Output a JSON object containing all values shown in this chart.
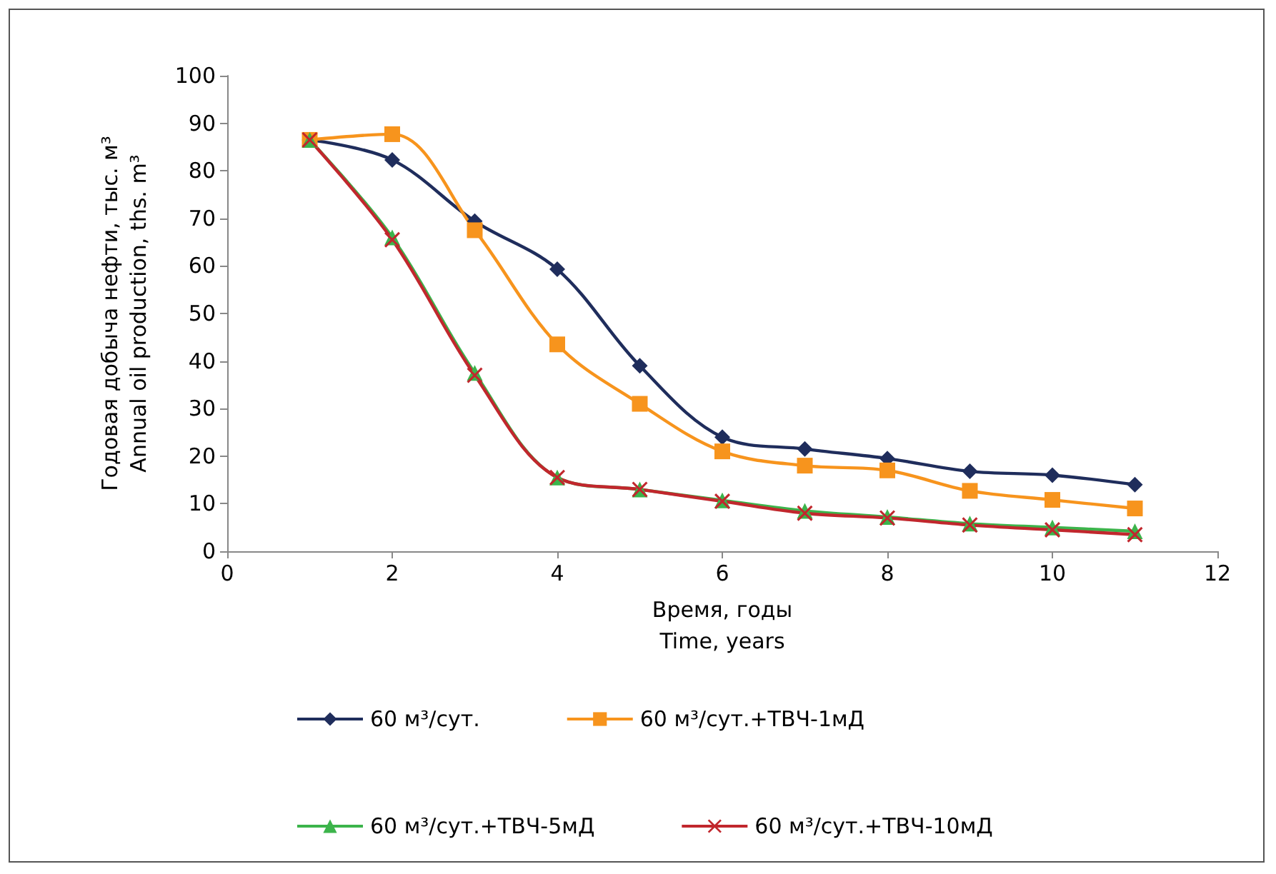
{
  "chart_data": {
    "type": "line",
    "xlabel": "Время, годы\nTime, years",
    "ylabel": "Годовая добыча нефти, тыс. м³\nAnnual oil production, ths. m³",
    "x": [
      1,
      2,
      3,
      4,
      5,
      6,
      7,
      8,
      9,
      10,
      11
    ],
    "series": [
      {
        "name": "60 м³/сут.",
        "color": "#1f2d5c",
        "marker": "diamond",
        "values": [
          86.5,
          82.3,
          69.4,
          59.3,
          39,
          24,
          21.5,
          19.5,
          16.8,
          16,
          14
        ]
      },
      {
        "name": "60 м³/сут.+ТВЧ-1мД",
        "color": "#f7941d",
        "marker": "square",
        "values": [
          86.5,
          87.7,
          67.5,
          43.5,
          31,
          21,
          18,
          17,
          12.7,
          10.8,
          9
        ]
      },
      {
        "name": "60 м³/сут.+ТВЧ-5мД",
        "color": "#3cb44b",
        "marker": "triangle",
        "values": [
          86.5,
          66,
          37.5,
          15.5,
          13,
          10.7,
          8.5,
          7.2,
          5.8,
          5,
          4.2
        ]
      },
      {
        "name": "60 м³/сут.+ТВЧ-10мД",
        "color": "#c1272d",
        "marker": "cross",
        "values": [
          86.5,
          65.5,
          37,
          15.5,
          13,
          10.5,
          8,
          7,
          5.5,
          4.5,
          3.5
        ]
      }
    ],
    "xlim": [
      0,
      12
    ],
    "xticks": [
      0,
      2,
      4,
      6,
      8,
      10,
      12
    ],
    "ylim": [
      0,
      100
    ],
    "yticks": [
      0,
      10,
      20,
      30,
      40,
      50,
      60,
      70,
      80,
      90,
      100
    ],
    "grid": false,
    "legend": "bottom",
    "line_style": "solid"
  }
}
